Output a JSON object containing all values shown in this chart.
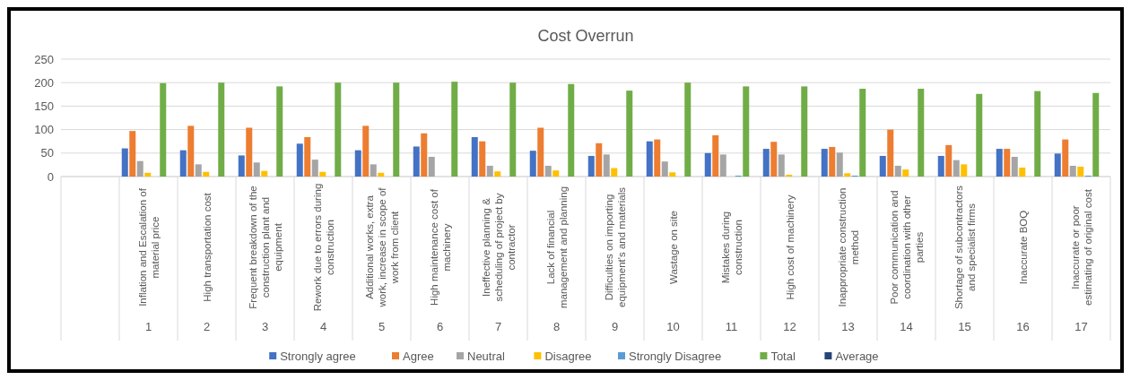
{
  "chart_data": {
    "type": "bar",
    "title": "Cost Overrun",
    "categories": [
      null,
      "Inflation and Escalation of material price",
      "High transportation cost",
      "Frequent breakdown of the construction plant and equipment",
      "Rework due to errors during construction",
      "Additional works, extra work, increase in scope of work from client",
      "High maintenance cost of machinery",
      "Ineffective planning & scheduling of project by contractor",
      "Lack of financial management and planning",
      "Difficulties on importing equipment's and materials",
      "Wastage on site",
      "Mistakes during construction",
      "High cost of machinery",
      "Inappropriate construction method",
      "Poor communication and coordination with other parties",
      "Shortage of subcontractors and specialist firms",
      "Inaccurate BOQ",
      "Inaccurate or poor estimating of original cost"
    ],
    "annotations": [
      "1",
      "2",
      "3",
      "4",
      "5",
      "6",
      "7",
      "8",
      "9",
      "10",
      "11",
      "12",
      "13",
      "14",
      "15",
      "16",
      "17"
    ],
    "series": [
      {
        "name": "Strongly agree",
        "color": "#4472c4",
        "values": [
          null,
          60,
          56,
          45,
          70,
          56,
          64,
          84,
          55,
          44,
          75,
          50,
          59,
          59,
          44,
          44,
          59,
          49
        ]
      },
      {
        "name": "Agree",
        "color": "#ed7d31",
        "values": [
          null,
          97,
          108,
          104,
          84,
          108,
          92,
          75,
          104,
          71,
          79,
          88,
          74,
          63,
          100,
          67,
          59,
          79
        ]
      },
      {
        "name": "Neutral",
        "color": "#a5a5a5",
        "values": [
          null,
          33,
          26,
          30,
          36,
          26,
          42,
          23,
          23,
          47,
          32,
          47,
          47,
          51,
          23,
          35,
          42,
          23
        ]
      },
      {
        "name": "Disagree",
        "color": "#ffc000",
        "values": [
          null,
          8,
          10,
          12,
          10,
          8,
          0,
          11,
          13,
          18,
          9,
          0,
          4,
          7,
          15,
          26,
          19,
          21
        ]
      },
      {
        "name": "Strongly Disagree",
        "color": "#5b9bd5",
        "values": [
          null,
          0,
          0,
          0,
          0,
          0,
          0,
          0,
          0,
          0,
          0,
          2,
          0,
          2,
          0,
          0,
          0,
          2
        ]
      },
      {
        "name": "Total",
        "color": "#70ad47",
        "values": [
          null,
          199,
          200,
          192,
          200,
          200,
          202,
          200,
          197,
          183,
          200,
          192,
          192,
          187,
          187,
          176,
          182,
          178
        ]
      },
      {
        "name": "Average",
        "color": "#264478",
        "values": [
          null,
          null,
          null,
          null,
          null,
          null,
          null,
          null,
          null,
          null,
          null,
          null,
          null,
          null,
          null,
          null,
          null,
          null
        ]
      }
    ],
    "ylim": [
      0,
      250
    ],
    "yticks": [
      0,
      50,
      100,
      150,
      200,
      250
    ],
    "grid": "y",
    "legend": "bottom"
  }
}
